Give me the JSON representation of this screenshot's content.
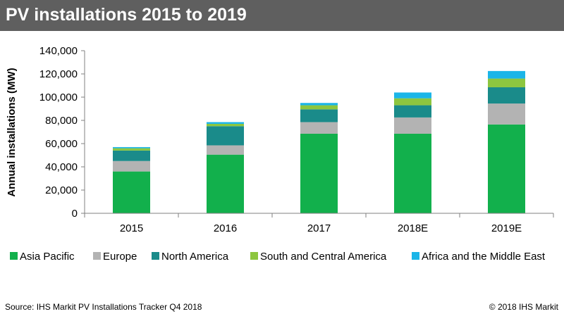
{
  "header": {
    "title": "PV installations 2015 to 2019"
  },
  "footer": {
    "source": "Source: IHS Markit PV Installations Tracker Q4 2018",
    "copyright": "© 2018 IHS Markit"
  },
  "chart_data": {
    "type": "bar",
    "stacked": true,
    "title": "",
    "xlabel": "",
    "ylabel": "Annual installations (MW)",
    "ylim": [
      0,
      140000
    ],
    "yticks": [
      0,
      20000,
      40000,
      60000,
      80000,
      100000,
      120000,
      140000
    ],
    "ytick_labels": [
      "0",
      "20,000",
      "40,000",
      "60,000",
      "80,000",
      "100,000",
      "120,000",
      "140,000"
    ],
    "grid": false,
    "legend_position": "bottom",
    "categories": [
      "2015",
      "2016",
      "2017",
      "2018E",
      "2019E"
    ],
    "series": [
      {
        "name": "Asia Pacific",
        "color": "#12b04c",
        "values": [
          36000,
          50500,
          68500,
          68500,
          76500
        ]
      },
      {
        "name": "Europe",
        "color": "#b3b3b3",
        "values": [
          9000,
          8000,
          10000,
          14000,
          18000
        ]
      },
      {
        "name": "North America",
        "color": "#1a8b8a",
        "values": [
          9000,
          16500,
          11000,
          10500,
          14000
        ]
      },
      {
        "name": "South and Central America",
        "color": "#8dc63f",
        "values": [
          2000,
          2000,
          3500,
          6000,
          7500
        ]
      },
      {
        "name": "Africa and the Middle East",
        "color": "#1bb5e8",
        "values": [
          1000,
          1500,
          2000,
          5000,
          6500
        ]
      }
    ]
  }
}
